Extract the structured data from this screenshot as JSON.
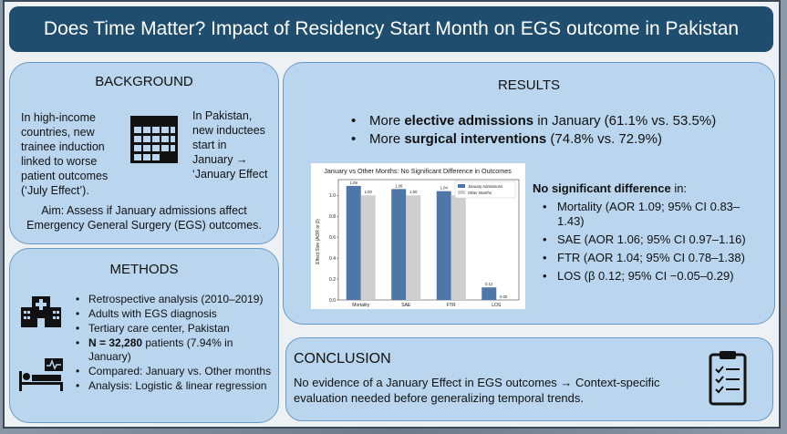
{
  "title": "Does Time Matter? Impact of Residency Start Month on EGS outcome in Pakistan",
  "background": {
    "heading": "BACKGROUND",
    "left_text": [
      "In high-income",
      "countries, new",
      "trainee induction",
      "linked to worse",
      "patient outcomes",
      "(‘July Effect’)."
    ],
    "right_text": [
      "In Pakistan,",
      "new inductees",
      "start in",
      "January →",
      "‘January Effect"
    ],
    "aim": [
      "Aim: Assess if January admissions affect",
      "Emergency General Surgery (EGS) outcomes."
    ]
  },
  "methods": {
    "heading": "METHODS",
    "items": [
      {
        "pre": "",
        "bold": "",
        "post": "Retrospective analysis (2010–2019)"
      },
      {
        "pre": "",
        "bold": "",
        "post": "Adults with EGS diagnosis"
      },
      {
        "pre": "",
        "bold": "",
        "post": "Tertiary care center, Pakistan"
      },
      {
        "pre": "",
        "bold": "N = 32,280",
        "post": " patients (7.94% in January)"
      },
      {
        "pre": "",
        "bold": "",
        "post": "Compared: January vs. Other months"
      },
      {
        "pre": "",
        "bold": "",
        "post": "Analysis: Logistic & linear regression"
      }
    ]
  },
  "results": {
    "heading": "RESULTS",
    "bullets": [
      {
        "pre": "More ",
        "bold": "elective admissions",
        "post": " in January (61.1% vs. 53.5%)"
      },
      {
        "pre": "More ",
        "bold": "surgical interventions",
        "post": " (74.8% vs. 72.9%)"
      }
    ],
    "no_sig_bold": "No significant difference",
    "no_sig_post": " in:",
    "no_sig_items": [
      "Mortality (AOR 1.09; 95% CI 0.83–1.43)",
      "SAE (AOR 1.06; 95% CI 0.97–1.16)",
      "FTR (AOR 1.04; 95% CI 0.78–1.38)",
      "LOS (β 0.12; 95% CI −0.05–0.29)"
    ]
  },
  "conclusion": {
    "heading": "CONCLUSION",
    "text": [
      "No evidence of a January Effect in EGS outcomes → Context-specific",
      "evaluation needed before generalizing temporal trends."
    ]
  },
  "chart_data": {
    "type": "bar",
    "title": "January vs Other Months: No Significant Difference in Outcomes",
    "ylabel": "Effect Size (AOR or β)",
    "xlabel": "",
    "categories": [
      "Mortality",
      "SAE",
      "FTR",
      "LOS"
    ],
    "series": [
      {
        "name": "January Admissions",
        "values": [
          1.09,
          1.06,
          1.04,
          0.12
        ],
        "labels": [
          "1.09",
          "1.06",
          "1.04",
          "0.12"
        ]
      },
      {
        "name": "Other Months",
        "values": [
          1.0,
          1.0,
          1.0,
          0.0
        ],
        "labels": [
          "1.00",
          "1.00",
          "1.00",
          "0.00"
        ]
      }
    ],
    "ylim": [
      0,
      1.15
    ],
    "yticks": [
      0.0,
      0.2,
      0.4,
      0.6,
      0.8,
      1.0
    ],
    "ytick_labels": [
      "0.0",
      "0.2",
      "0.4",
      "0.6",
      "0.8",
      "1.0"
    ],
    "legend": "top-right",
    "colors": [
      "#4f76a8",
      "#cfcfcf"
    ]
  }
}
